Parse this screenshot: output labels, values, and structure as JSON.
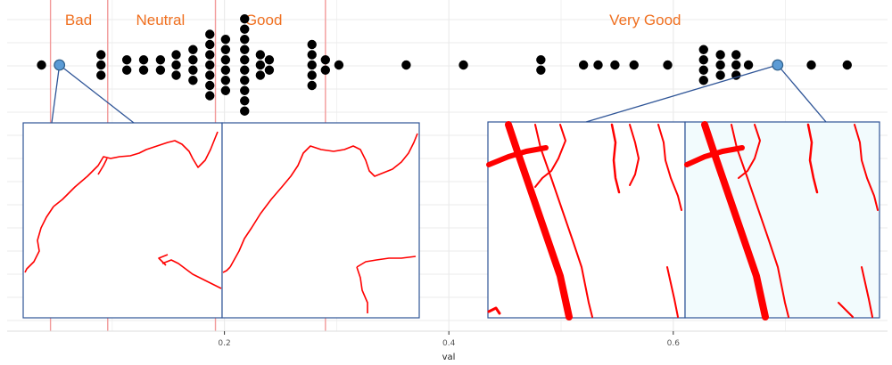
{
  "chart_data": {
    "type": "scatter",
    "xlabel": "val",
    "ylabel": "",
    "xlim": [
      0.0,
      0.78
    ],
    "xticks": [
      0.2,
      0.4,
      0.6
    ],
    "tick_labels": [
      "0.2",
      "0.4",
      "0.6"
    ],
    "grid": true,
    "legend": "none",
    "thresholds": [
      0.045,
      0.096,
      0.192,
      0.29
    ],
    "categories": [
      {
        "label": "Bad",
        "x": 0.07
      },
      {
        "label": "Neutral",
        "x": 0.143
      },
      {
        "label": "Good",
        "x": 0.235
      },
      {
        "label": "Very Good",
        "x": 0.575
      }
    ],
    "points": [
      {
        "x": 0.037,
        "n": 1
      },
      {
        "x": 0.09,
        "n": 3
      },
      {
        "x": 0.113,
        "n": 2
      },
      {
        "x": 0.128,
        "n": 2
      },
      {
        "x": 0.143,
        "n": 2
      },
      {
        "x": 0.157,
        "n": 3
      },
      {
        "x": 0.172,
        "n": 4
      },
      {
        "x": 0.187,
        "n": 7
      },
      {
        "x": 0.201,
        "n": 6
      },
      {
        "x": 0.218,
        "n": 10
      },
      {
        "x": 0.232,
        "n": 3
      },
      {
        "x": 0.24,
        "n": 2
      },
      {
        "x": 0.278,
        "n": 5
      },
      {
        "x": 0.29,
        "n": 2
      },
      {
        "x": 0.302,
        "n": 1
      },
      {
        "x": 0.362,
        "n": 1
      },
      {
        "x": 0.413,
        "n": 1
      },
      {
        "x": 0.482,
        "n": 2
      },
      {
        "x": 0.52,
        "n": 1
      },
      {
        "x": 0.533,
        "n": 1
      },
      {
        "x": 0.548,
        "n": 1
      },
      {
        "x": 0.565,
        "n": 1
      },
      {
        "x": 0.595,
        "n": 1
      },
      {
        "x": 0.627,
        "n": 4
      },
      {
        "x": 0.642,
        "n": 3
      },
      {
        "x": 0.656,
        "n": 3
      },
      {
        "x": 0.667,
        "n": 1
      },
      {
        "x": 0.723,
        "n": 1
      },
      {
        "x": 0.755,
        "n": 1
      }
    ],
    "highlighted": [
      0.053,
      0.693
    ]
  },
  "colors": {
    "dot": "#000000",
    "highlight": "#5b9bd5",
    "threshold": "#f29a9a",
    "label": "#f07020",
    "frame": "#2f5597",
    "contour": "#ff0000",
    "grid": "#ebebeb"
  }
}
